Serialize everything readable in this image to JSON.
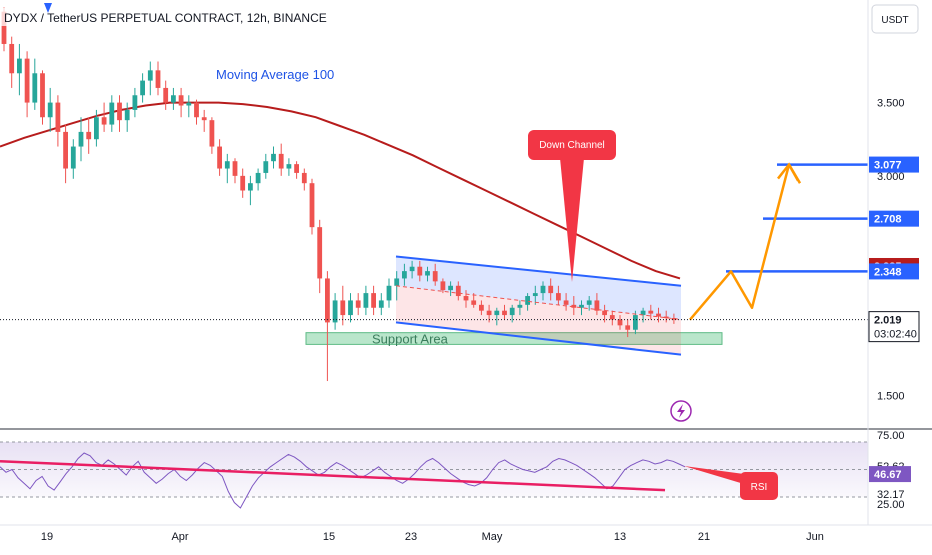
{
  "header": {
    "title": "DYDX / TetherUS PERPETUAL CONTRACT, 12h, BINANCE",
    "currency": "USDT"
  },
  "colors": {
    "up": "#26a69a",
    "down": "#ef5350",
    "ma": "#b71c1c",
    "channel": "#2962ff",
    "projection": "#ff9800",
    "rsi": "#7e57c2",
    "rsi_trend": "#e91e63",
    "support": "#7fd1a0",
    "callout": "#f23645"
  },
  "chart_data": [
    {
      "type": "candlestick",
      "title": "DYDX / TetherUS PERPETUAL CONTRACT, 12h, BINANCE",
      "ylabel": "USDT",
      "x_labels": [
        "19",
        "Apr",
        "15",
        "23",
        "May",
        "13",
        "21",
        "Jun"
      ],
      "y_ticks": [
        "3.500",
        "3.000",
        "1.500"
      ],
      "ylim": [
        1.3,
        4.2
      ],
      "grid": false,
      "candles_ohlc": [
        [
          4.12,
          4.15,
          3.85,
          3.9
        ],
        [
          3.9,
          3.95,
          3.6,
          3.7
        ],
        [
          3.7,
          3.9,
          3.55,
          3.8
        ],
        [
          3.8,
          3.85,
          3.4,
          3.5
        ],
        [
          3.5,
          3.8,
          3.45,
          3.7
        ],
        [
          3.7,
          3.72,
          3.35,
          3.4
        ],
        [
          3.4,
          3.6,
          3.3,
          3.5
        ],
        [
          3.5,
          3.55,
          3.2,
          3.3
        ],
        [
          3.3,
          3.35,
          2.95,
          3.05
        ],
        [
          3.05,
          3.25,
          2.98,
          3.2
        ],
        [
          3.2,
          3.4,
          3.1,
          3.3
        ],
        [
          3.3,
          3.4,
          3.15,
          3.25
        ],
        [
          3.25,
          3.45,
          3.2,
          3.4
        ],
        [
          3.4,
          3.5,
          3.3,
          3.35
        ],
        [
          3.35,
          3.55,
          3.3,
          3.5
        ],
        [
          3.5,
          3.55,
          3.3,
          3.38
        ],
        [
          3.38,
          3.5,
          3.3,
          3.45
        ],
        [
          3.45,
          3.6,
          3.4,
          3.55
        ],
        [
          3.55,
          3.7,
          3.5,
          3.65
        ],
        [
          3.65,
          3.78,
          3.55,
          3.72
        ],
        [
          3.72,
          3.78,
          3.55,
          3.6
        ],
        [
          3.6,
          3.65,
          3.45,
          3.5
        ],
        [
          3.5,
          3.6,
          3.45,
          3.55
        ],
        [
          3.55,
          3.6,
          3.4,
          3.48
        ],
        [
          3.48,
          3.55,
          3.4,
          3.5
        ],
        [
          3.5,
          3.52,
          3.35,
          3.4
        ],
        [
          3.4,
          3.45,
          3.3,
          3.38
        ],
        [
          3.38,
          3.4,
          3.15,
          3.2
        ],
        [
          3.2,
          3.25,
          3.0,
          3.05
        ],
        [
          3.05,
          3.15,
          2.95,
          3.1
        ],
        [
          3.1,
          3.12,
          2.95,
          3.0
        ],
        [
          3.0,
          3.05,
          2.85,
          2.9
        ],
        [
          2.9,
          3.0,
          2.8,
          2.95
        ],
        [
          2.95,
          3.05,
          2.9,
          3.02
        ],
        [
          3.02,
          3.15,
          2.98,
          3.1
        ],
        [
          3.1,
          3.2,
          3.05,
          3.15
        ],
        [
          3.15,
          3.22,
          3.0,
          3.05
        ],
        [
          3.05,
          3.12,
          3.0,
          3.08
        ],
        [
          3.08,
          3.1,
          2.98,
          3.02
        ],
        [
          3.02,
          3.05,
          2.9,
          2.95
        ],
        [
          2.95,
          2.98,
          2.6,
          2.65
        ],
        [
          2.65,
          2.7,
          2.2,
          2.3
        ],
        [
          2.3,
          2.35,
          1.6,
          2.0
        ],
        [
          2.0,
          2.2,
          1.95,
          2.15
        ],
        [
          2.15,
          2.25,
          1.98,
          2.05
        ],
        [
          2.05,
          2.2,
          2.0,
          2.15
        ],
        [
          2.15,
          2.2,
          2.05,
          2.1
        ],
        [
          2.1,
          2.25,
          2.05,
          2.2
        ],
        [
          2.2,
          2.25,
          2.05,
          2.1
        ],
        [
          2.1,
          2.2,
          2.05,
          2.15
        ],
        [
          2.15,
          2.3,
          2.1,
          2.25
        ],
        [
          2.25,
          2.35,
          2.15,
          2.3
        ],
        [
          2.3,
          2.4,
          2.25,
          2.35
        ],
        [
          2.35,
          2.42,
          2.3,
          2.38
        ],
        [
          2.38,
          2.42,
          2.28,
          2.32
        ],
        [
          2.32,
          2.38,
          2.28,
          2.35
        ],
        [
          2.35,
          2.4,
          2.25,
          2.28
        ],
        [
          2.28,
          2.3,
          2.2,
          2.22
        ],
        [
          2.22,
          2.28,
          2.18,
          2.25
        ],
        [
          2.25,
          2.28,
          2.15,
          2.18
        ],
        [
          2.18,
          2.22,
          2.1,
          2.15
        ],
        [
          2.15,
          2.2,
          2.1,
          2.12
        ],
        [
          2.12,
          2.15,
          2.05,
          2.08
        ],
        [
          2.08,
          2.12,
          2.0,
          2.05
        ],
        [
          2.05,
          2.1,
          1.98,
          2.08
        ],
        [
          2.08,
          2.12,
          2.02,
          2.05
        ],
        [
          2.05,
          2.12,
          2.0,
          2.1
        ],
        [
          2.1,
          2.15,
          2.05,
          2.12
        ],
        [
          2.12,
          2.2,
          2.08,
          2.18
        ],
        [
          2.18,
          2.25,
          2.12,
          2.2
        ],
        [
          2.2,
          2.28,
          2.15,
          2.25
        ],
        [
          2.25,
          2.3,
          2.15,
          2.2
        ],
        [
          2.2,
          2.25,
          2.12,
          2.15
        ],
        [
          2.15,
          2.2,
          2.08,
          2.12
        ],
        [
          2.12,
          2.18,
          2.05,
          2.1
        ],
        [
          2.1,
          2.15,
          2.05,
          2.12
        ],
        [
          2.12,
          2.18,
          2.08,
          2.15
        ],
        [
          2.15,
          2.2,
          2.05,
          2.08
        ],
        [
          2.08,
          2.12,
          2.0,
          2.05
        ],
        [
          2.05,
          2.08,
          1.98,
          2.02
        ],
        [
          2.02,
          2.05,
          1.95,
          1.98
        ],
        [
          1.98,
          2.02,
          1.9,
          1.95
        ],
        [
          1.95,
          2.08,
          1.92,
          2.05
        ],
        [
          2.05,
          2.1,
          2.0,
          2.08
        ],
        [
          2.08,
          2.12,
          2.02,
          2.06
        ],
        [
          2.06,
          2.1,
          2.0,
          2.04
        ],
        [
          2.04,
          2.08,
          2.0,
          2.03
        ],
        [
          2.03,
          2.06,
          1.99,
          2.019
        ]
      ],
      "moving_average_100": [
        3.2,
        3.26,
        3.31,
        3.36,
        3.41,
        3.45,
        3.48,
        3.5,
        3.5,
        3.5,
        3.49,
        3.47,
        3.44,
        3.4,
        3.34,
        3.28,
        3.21,
        3.14,
        3.06,
        2.98,
        2.9,
        2.82,
        2.74,
        2.66,
        2.58,
        2.5,
        2.42,
        2.35,
        2.3
      ],
      "down_channel": {
        "upper": {
          "from": 2.45,
          "to": 2.25
        },
        "middle": {
          "from": 2.25,
          "to": 2.02
        },
        "lower": {
          "from": 2.0,
          "to": 1.78
        }
      },
      "projection_path": [
        2.019,
        2.348,
        2.1,
        3.077,
        2.95
      ],
      "support_area": {
        "top": 1.93,
        "bottom": 1.85
      },
      "levels": [
        3.077,
        2.708,
        2.348
      ],
      "price_tags": [
        {
          "label": "3.077",
          "kind": "level"
        },
        {
          "label": "2.708",
          "kind": "level"
        },
        {
          "label": "2.385",
          "kind": "ma"
        },
        {
          "label": "2.348",
          "kind": "level"
        },
        {
          "label": "2.019",
          "kind": "last",
          "sub": "03:02:40"
        }
      ],
      "annotations": {
        "moving_average": "Moving Average 100",
        "down_channel": "Down Channel",
        "support": "Support Area"
      }
    },
    {
      "type": "line",
      "series": [
        {
          "name": "RSI",
          "values": [
            52,
            48,
            50,
            44,
            40,
            36,
            42,
            45,
            38,
            35,
            41,
            47,
            52,
            58,
            62,
            60,
            55,
            53,
            57,
            54,
            50,
            46,
            52,
            56,
            48,
            44,
            40,
            43,
            47,
            50,
            45,
            42,
            46,
            51,
            55,
            53,
            49,
            45,
            34,
            26,
            22,
            30,
            38,
            44,
            48,
            52,
            55,
            58,
            61,
            59,
            56,
            52,
            49,
            46,
            48,
            52,
            55,
            53,
            50,
            47,
            44,
            46,
            49,
            52,
            48,
            45,
            42,
            40,
            43,
            47,
            52,
            56,
            58,
            55,
            51,
            47,
            44,
            41,
            39,
            38,
            40,
            44,
            50,
            55,
            57,
            54,
            52,
            50,
            49,
            48,
            50,
            52,
            56,
            58,
            57,
            55,
            53,
            50,
            47,
            44,
            40,
            36,
            38,
            44,
            50,
            53,
            55,
            57,
            56,
            54,
            55,
            57,
            56,
            54,
            52
          ]
        }
      ],
      "trendline": {
        "from": 56,
        "to": 35
      },
      "ylim": [
        22,
        78
      ],
      "band": [
        30,
        70
      ],
      "y_ticks": [
        "75.00",
        "52.62",
        "32.17",
        "25.00"
      ],
      "value_tag": "46.67",
      "callout": "RSI"
    }
  ]
}
